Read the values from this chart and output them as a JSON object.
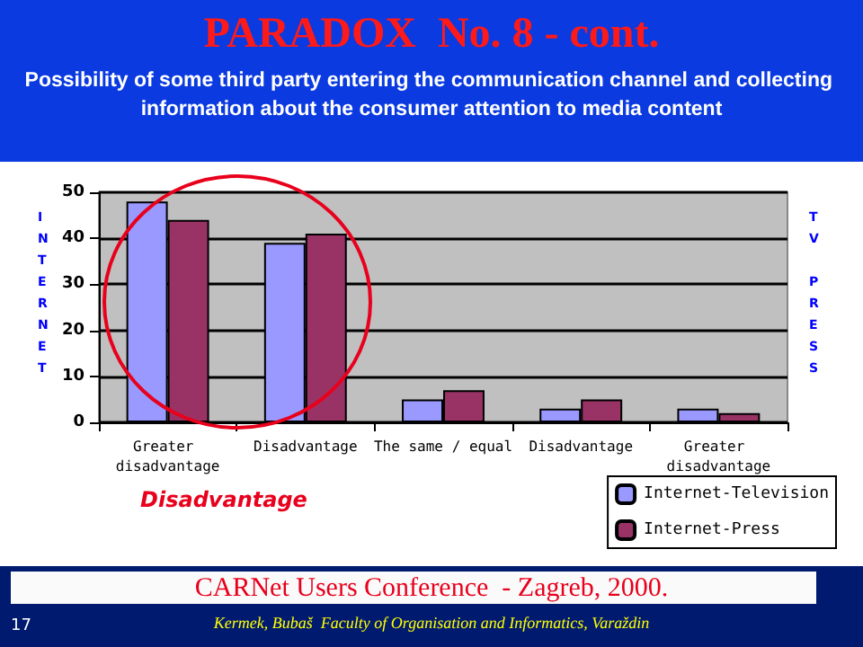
{
  "chart_data": {
    "type": "bar",
    "title": "PARADOX  No. 8 - cont.",
    "subtitle": "Possibility of some third party entering the communication channel and collecting information about the consumer attention to media content",
    "ylabel": "INTERNET",
    "y2label": "TV PRESS",
    "categories": [
      "Greater disadvantage",
      "Disadvantage",
      "The same / equal",
      "Disadvantage",
      "Greater disadvantage"
    ],
    "series": [
      {
        "name": "Internet-Television",
        "color": "#9999ff",
        "values": [
          48,
          39,
          5,
          3,
          3
        ]
      },
      {
        "name": "Internet-Press",
        "color": "#993366",
        "values": [
          44,
          41,
          7,
          5,
          2
        ]
      }
    ],
    "ylim": [
      0,
      50
    ],
    "yticks": [
      0,
      10,
      20,
      30,
      40,
      50
    ],
    "grid": "y",
    "legend": "bottom right",
    "annotations": [
      "Disadvantage",
      "CARNet Users Conference  - Zagreb, 2000.",
      "17",
      "Kermek, Bubaš  Faculty of Organisation and Informatics, Varaždin"
    ]
  }
}
